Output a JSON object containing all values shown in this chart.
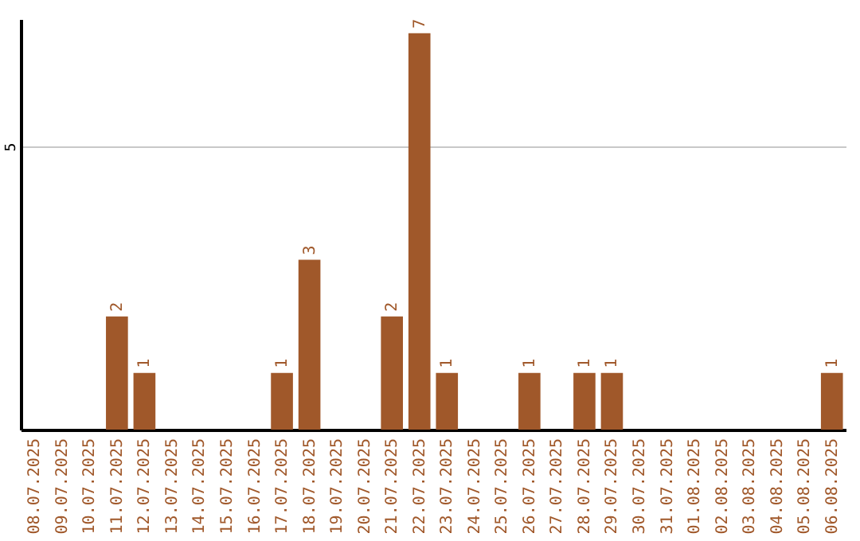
{
  "chart_data": {
    "type": "bar",
    "categories": [
      "08.07.2025",
      "09.07.2025",
      "10.07.2025",
      "11.07.2025",
      "12.07.2025",
      "13.07.2025",
      "14.07.2025",
      "15.07.2025",
      "16.07.2025",
      "17.07.2025",
      "18.07.2025",
      "19.07.2025",
      "20.07.2025",
      "21.07.2025",
      "22.07.2025",
      "23.07.2025",
      "24.07.2025",
      "25.07.2025",
      "26.07.2025",
      "27.07.2025",
      "28.07.2025",
      "29.07.2025",
      "30.07.2025",
      "31.07.2025",
      "01.08.2025",
      "02.08.2025",
      "03.08.2025",
      "04.08.2025",
      "05.08.2025",
      "06.08.2025"
    ],
    "values": [
      0,
      0,
      0,
      2,
      1,
      0,
      0,
      0,
      0,
      1,
      3,
      0,
      0,
      2,
      7,
      1,
      0,
      0,
      1,
      0,
      1,
      1,
      0,
      0,
      0,
      0,
      0,
      0,
      0,
      1
    ],
    "value_labels": [
      null,
      null,
      null,
      "2",
      "1",
      null,
      null,
      null,
      null,
      "1",
      "3",
      null,
      null,
      "2",
      "7",
      "1",
      null,
      null,
      "1",
      null,
      "1",
      "1",
      null,
      null,
      null,
      null,
      null,
      null,
      null,
      "1"
    ],
    "color": "#a0582a",
    "ylim": [
      0,
      7.25
    ],
    "yticks": [
      5
    ],
    "grid": "y"
  }
}
